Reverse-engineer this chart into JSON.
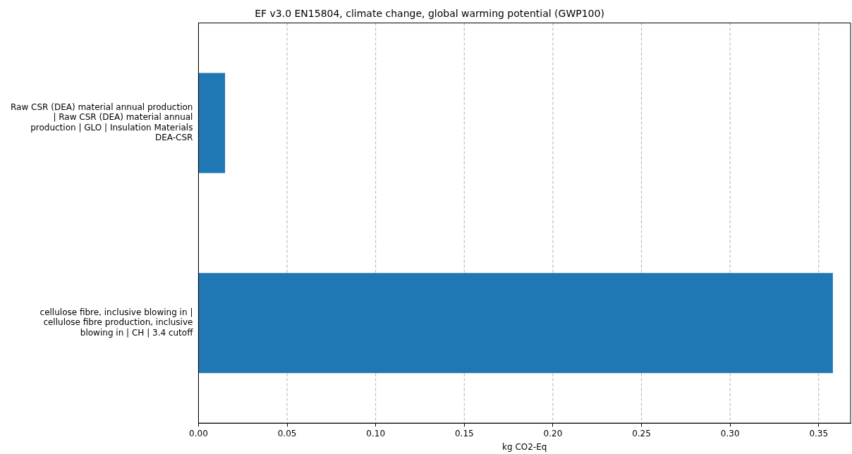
{
  "chart_data": {
    "type": "bar",
    "orientation": "horizontal",
    "title": "EF v3.0 EN15804, climate change, global warming potential (GWP100)",
    "xlabel": "kg CO2-Eq",
    "categories": [
      "Raw CSR (DEA) material annual production | Raw CSR (DEA) material annual production | GLO | Insulation Materials DEA-CSR",
      "cellulose fibre, inclusive blowing in | cellulose fibre production, inclusive blowing in | CH | 3.4 cutoff"
    ],
    "values": [
      0.015,
      0.358
    ],
    "color": "#1f77b4",
    "xlim": [
      0,
      0.368
    ],
    "xticks": [
      {
        "value": 0,
        "label": "0.00"
      },
      {
        "value": 0.05,
        "label": "0.05"
      },
      {
        "value": 0.1,
        "label": "0.10"
      },
      {
        "value": 0.15,
        "label": "0.15"
      },
      {
        "value": 0.2,
        "label": "0.20"
      },
      {
        "value": 0.25,
        "label": "0.25"
      },
      {
        "value": 0.3,
        "label": "0.30"
      },
      {
        "value": 0.35,
        "label": "0.35"
      }
    ],
    "grid": "x",
    "line_style": "dashed"
  }
}
